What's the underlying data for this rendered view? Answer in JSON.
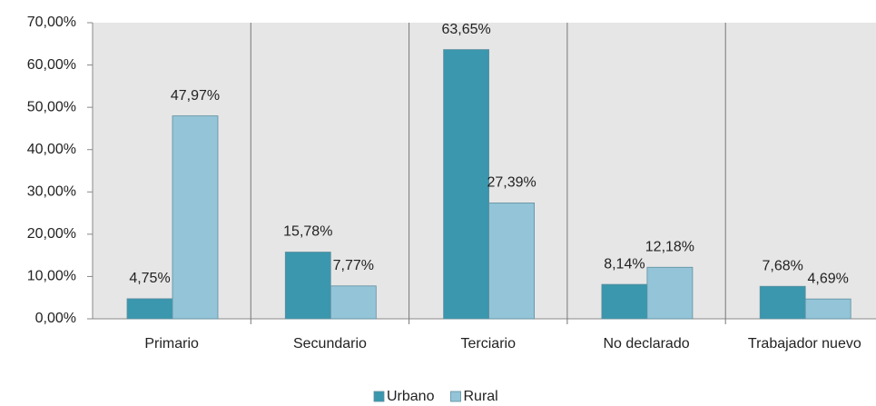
{
  "chart_data": {
    "type": "bar",
    "categories": [
      "Primario",
      "Secundario",
      "Terciario",
      "No declarado",
      "Trabajador nuevo"
    ],
    "series": [
      {
        "name": "Urbano",
        "color": "#3a97ad",
        "values": [
          4.75,
          15.78,
          63.65,
          8.14,
          7.68
        ],
        "value_labels": [
          "4,75%",
          "15,78%",
          "63,65%",
          "8,14%",
          "7,68%"
        ]
      },
      {
        "name": "Rural",
        "color": "#93c4d7",
        "values": [
          47.97,
          7.77,
          27.39,
          12.18,
          4.69
        ],
        "value_labels": [
          "47,97%",
          "7,77%",
          "27,39%",
          "12,18%",
          "4,69%"
        ]
      }
    ],
    "ylim": [
      0,
      70
    ],
    "yticks": [
      {
        "value": 0,
        "label": "0,00%"
      },
      {
        "value": 10,
        "label": "10,00%"
      },
      {
        "value": 20,
        "label": "20,00%"
      },
      {
        "value": 30,
        "label": "30,00%"
      },
      {
        "value": 40,
        "label": "40,00%"
      },
      {
        "value": 50,
        "label": "50,00%"
      },
      {
        "value": 60,
        "label": "60,00%"
      },
      {
        "value": 70,
        "label": "70,00%"
      }
    ],
    "legend": "bottom"
  }
}
